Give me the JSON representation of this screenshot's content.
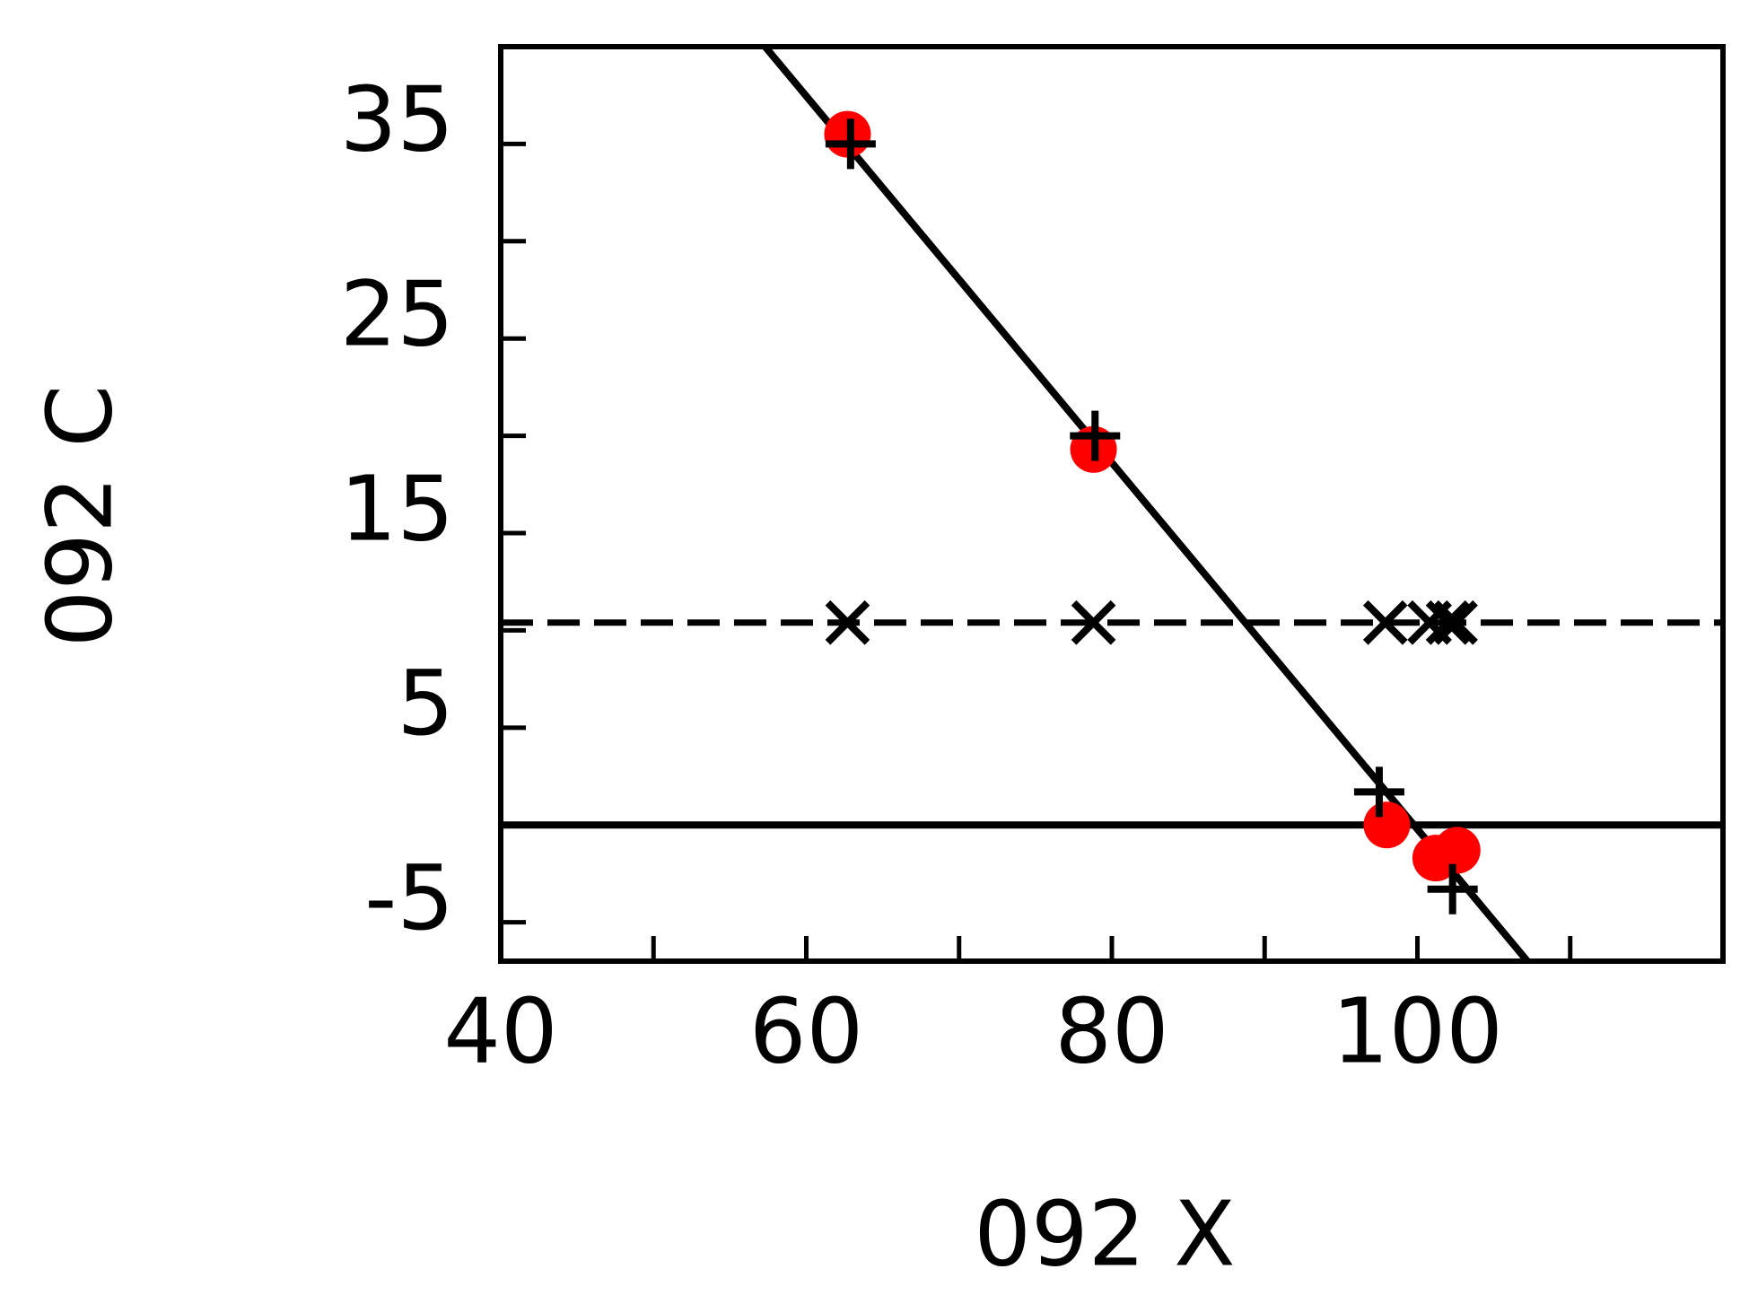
{
  "chart_data": {
    "type": "scatter",
    "x_label": "092 X",
    "y_label": "092 C",
    "xlim": [
      40,
      120
    ],
    "xticks": [
      40,
      60,
      80,
      100
    ],
    "xminor_ticks": [
      50,
      70,
      90,
      110
    ],
    "ylim": [
      -7,
      40
    ],
    "yticks": [
      35,
      25,
      15,
      5,
      -5
    ],
    "yminor_ticks": [
      30,
      20,
      10,
      0
    ],
    "series": [
      {
        "kind": "line",
        "style": "solid",
        "color": "#000000",
        "x": [
          57.3,
          107.2
        ],
        "values": [
          40,
          -7
        ]
      },
      {
        "kind": "line",
        "style": "dashed",
        "color": "#000000",
        "x": [
          40,
          120
        ],
        "values": [
          10.4,
          10.4
        ]
      },
      {
        "kind": "line",
        "style": "solid",
        "color": "#000000",
        "x": [
          40,
          120
        ],
        "values": [
          0,
          0
        ]
      },
      {
        "kind": "points",
        "marker": "circle",
        "color": "#ff0000",
        "x": [
          62.7,
          78.8,
          98.0,
          101.2,
          102.6
        ],
        "values": [
          35.5,
          19.3,
          0,
          -1.7,
          -1.3
        ]
      },
      {
        "kind": "points",
        "marker": "plus",
        "color": "#000000",
        "x": [
          62.9,
          78.9,
          97.5,
          102.3
        ],
        "values": [
          35,
          20,
          1.7,
          -3.3
        ]
      },
      {
        "kind": "points",
        "marker": "cross",
        "color": "#000000",
        "x": [
          62.7,
          78.8,
          97.9,
          100.8,
          102.0,
          102.5
        ],
        "values": [
          10.4,
          10.4,
          10.4,
          10.4,
          10.4,
          10.4
        ]
      }
    ]
  }
}
